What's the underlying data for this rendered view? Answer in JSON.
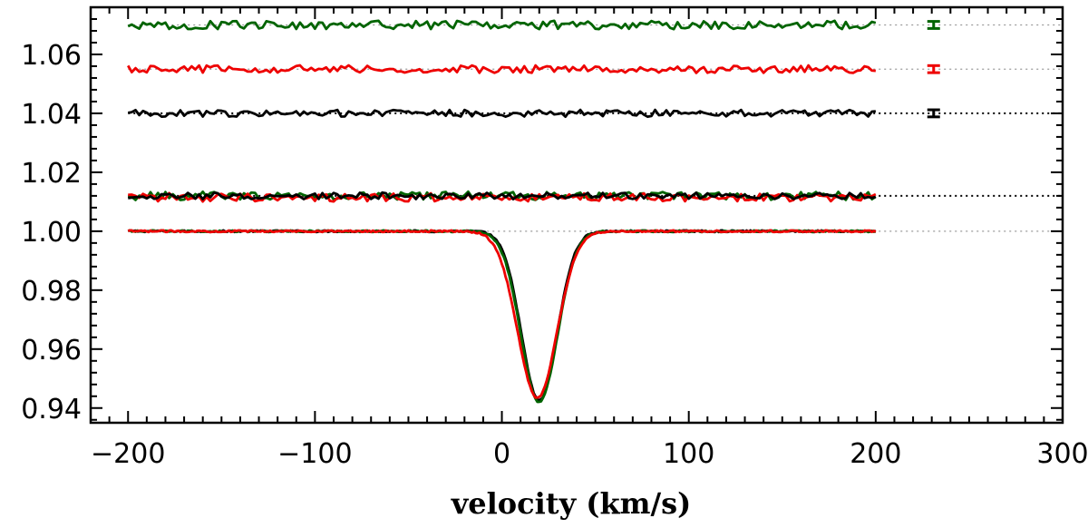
{
  "chart_data": {
    "type": "line",
    "title": "",
    "xlabel": "velocity (km/s)",
    "ylabel": "",
    "xlim": [
      -220,
      300
    ],
    "ylim": [
      0.935,
      1.076
    ],
    "xticks": [
      -200,
      -100,
      0,
      100,
      200,
      300
    ],
    "xtick_labels": [
      "−200",
      "−100",
      "0",
      "100",
      "200",
      "300"
    ],
    "yticks": [
      0.94,
      0.96,
      0.98,
      1.0,
      1.02,
      1.04,
      1.06
    ],
    "ytick_labels": [
      "0.94",
      "0.96",
      "0.98",
      "1.00",
      "1.02",
      "1.04",
      "1.06"
    ],
    "reference_lines": [
      {
        "y": 1.07,
        "style": "gray-dotted"
      },
      {
        "y": 1.055,
        "style": "gray-dotted"
      },
      {
        "y": 1.04,
        "style": "black-dotted"
      },
      {
        "y": 1.012,
        "style": "black-dotted"
      },
      {
        "y": 1.0,
        "style": "gray-dotted"
      }
    ],
    "profile": {
      "description": "line profile, absorption at ~20 km/s",
      "continuum": 1.0,
      "center": 20,
      "depth": 0.058,
      "x_range": [
        -200,
        200
      ]
    },
    "series": [
      {
        "name": "profile black",
        "color": "#000000",
        "kind": "profile",
        "center": 20,
        "depth": 0.0575,
        "sigma": 9.5
      },
      {
        "name": "profile green",
        "color": "#006400",
        "kind": "profile",
        "center": 20,
        "depth": 0.058,
        "sigma": 9.8
      },
      {
        "name": "profile red",
        "color": "#ee0000",
        "kind": "profile",
        "center": 19,
        "depth": 0.0565,
        "sigma": 10.5
      },
      {
        "name": "residual green (overlay)",
        "color": "#006400",
        "kind": "noise",
        "level": 1.012,
        "amp": 0.0011
      },
      {
        "name": "residual red (overlay)",
        "color": "#ee0000",
        "kind": "noise",
        "level": 1.0115,
        "amp": 0.0011
      },
      {
        "name": "residual black (overlay)",
        "color": "#000000",
        "kind": "noise",
        "level": 1.012,
        "amp": 0.0009
      },
      {
        "name": "residual black (offset)",
        "color": "#000000",
        "kind": "noise",
        "level": 1.04,
        "amp": 0.0009
      },
      {
        "name": "residual red (offset)",
        "color": "#ee0000",
        "kind": "noise",
        "level": 1.055,
        "amp": 0.001
      },
      {
        "name": "residual green (offset)",
        "color": "#006400",
        "kind": "noise",
        "level": 1.07,
        "amp": 0.0011
      }
    ],
    "error_bars": [
      {
        "x": 231,
        "y": 1.07,
        "err": 0.0012,
        "color": "#006400"
      },
      {
        "x": 231,
        "y": 1.055,
        "err": 0.0012,
        "color": "#ee0000"
      },
      {
        "x": 231,
        "y": 1.04,
        "err": 0.0012,
        "color": "#000000"
      }
    ]
  }
}
